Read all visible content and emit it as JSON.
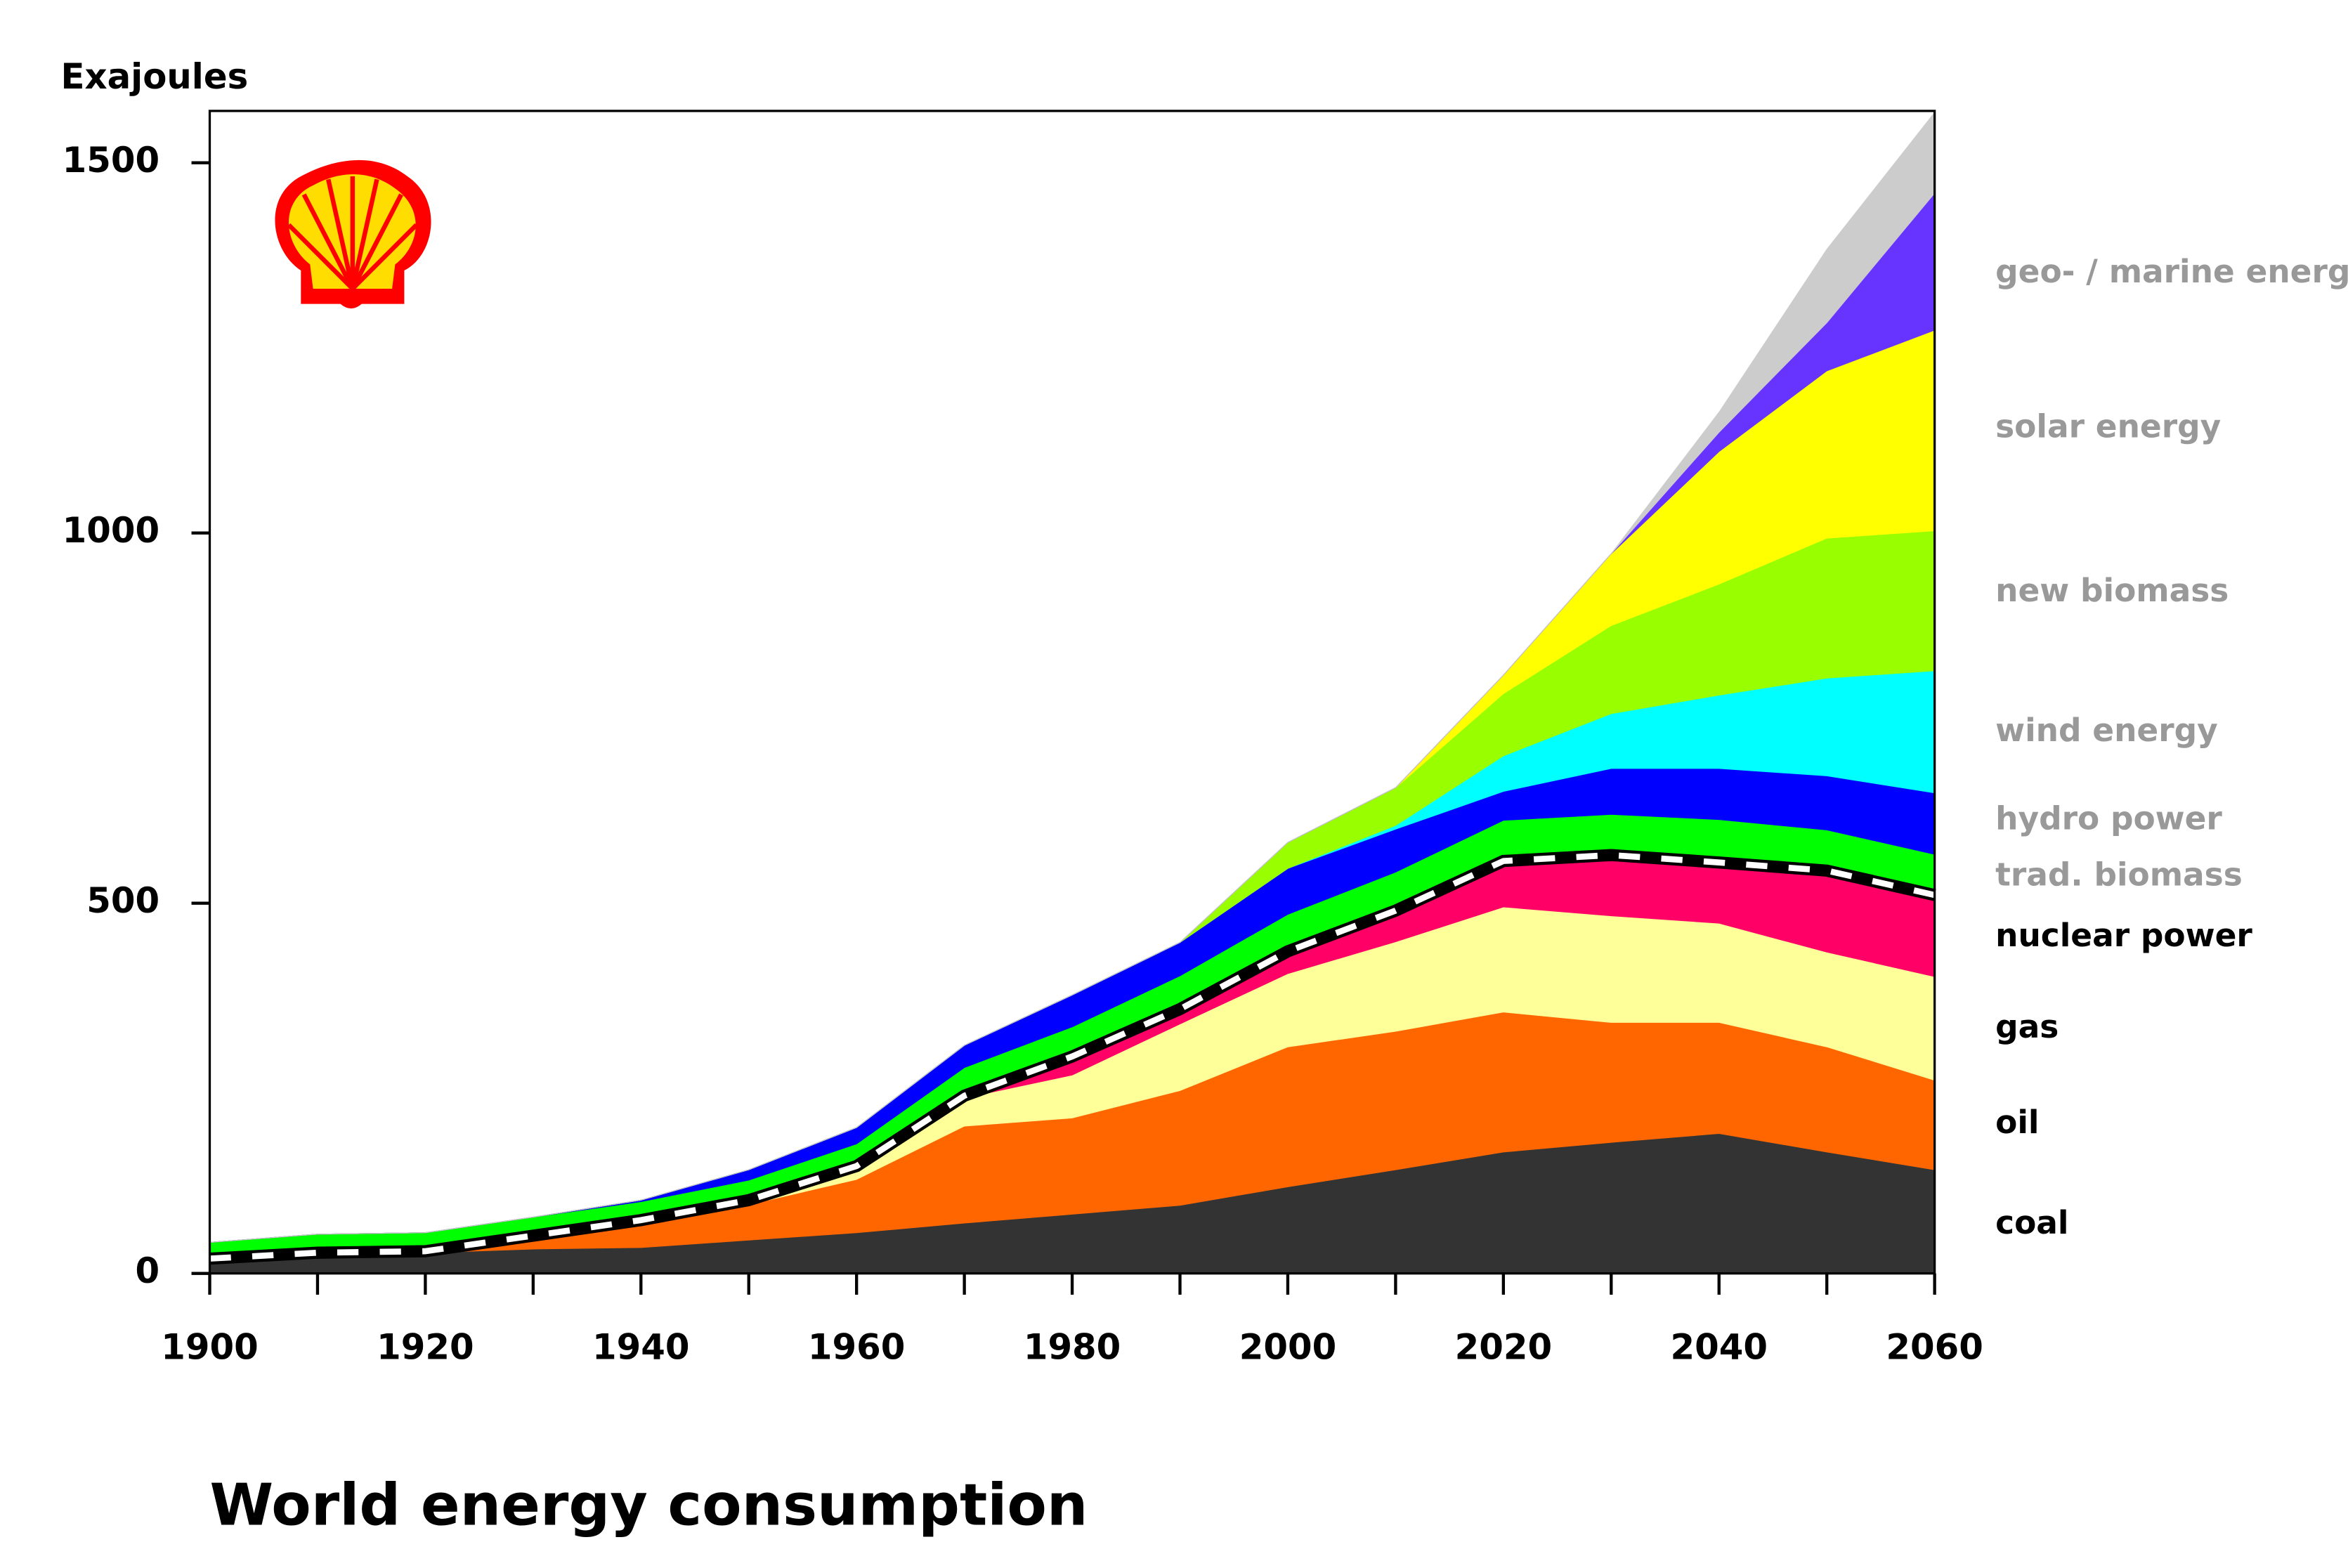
{
  "chart_data": {
    "type": "stacked_area",
    "title": "World energy consumption",
    "y_label": "Exajoules",
    "x": [
      1900,
      1910,
      1920,
      1930,
      1940,
      1950,
      1960,
      1970,
      1980,
      1990,
      2000,
      2010,
      2020,
      2030,
      2040,
      2050,
      2060
    ],
    "xlim": [
      1900,
      2060
    ],
    "xticks": [
      1900,
      1920,
      1940,
      1960,
      1980,
      2000,
      2020,
      2040,
      2060
    ],
    "xminor_ticks": [
      1910,
      1930,
      1950,
      1970,
      1990,
      2010,
      2030,
      2050
    ],
    "ylim": [
      0,
      1570
    ],
    "yticks": [
      0,
      500,
      1000,
      1500
    ],
    "series": [
      {
        "name": "coal",
        "color": "#333333",
        "label_color": "#000000",
        "values": [
          20,
          28,
          28,
          33,
          35,
          45,
          55,
          68,
          80,
          92,
          117,
          140,
          164,
          177,
          189,
          164,
          140
        ]
      },
      {
        "name": "oil",
        "color": "#ff6600",
        "label_color": "#000000",
        "values": [
          0,
          0,
          2,
          18,
          35,
          48,
          72,
          131,
          130,
          155,
          189,
          187,
          189,
          162,
          150,
          142,
          121
        ]
      },
      {
        "name": "gas",
        "color": "#ffff99",
        "label_color": "#000000",
        "values": [
          0,
          0,
          0,
          0,
          2,
          6,
          18,
          38,
          58,
          90,
          99,
          121,
          142,
          144,
          134,
          128,
          140
        ]
      },
      {
        "name": "nuclear power",
        "color": "#ff0066",
        "label_color": "#000000",
        "values": [
          0,
          0,
          0,
          0,
          0,
          0,
          0,
          3,
          25,
          20,
          30,
          42,
          62,
          82,
          82,
          110,
          110
        ]
      },
      {
        "name": "trad. biomass",
        "color": "#00ff00",
        "label_color": "#999999",
        "values": [
          22,
          25,
          25,
          25,
          25,
          27,
          30,
          38,
          40,
          45,
          50,
          52,
          55,
          55,
          58,
          55,
          55
        ]
      },
      {
        "name": "hydro power",
        "color": "#0000ff",
        "label_color": "#999999",
        "values": [
          0,
          0,
          0,
          0,
          2,
          14,
          22,
          30,
          43,
          45,
          62,
          58,
          39,
          62,
          69,
          73,
          83
        ]
      },
      {
        "name": "wind energy",
        "color": "#00ffff",
        "label_color": "#999999",
        "values": [
          0,
          0,
          0,
          0,
          0,
          0,
          0,
          0,
          0,
          0,
          0,
          5,
          48,
          74,
          99,
          132,
          165
        ]
      },
      {
        "name": "new biomass",
        "color": "#99ff00",
        "label_color": "#999999",
        "values": [
          0,
          0,
          0,
          0,
          0,
          0,
          0,
          0,
          0,
          0,
          35,
          51,
          84,
          119,
          150,
          189,
          189
        ]
      },
      {
        "name": "solar energy",
        "color": "#ffff00",
        "label_color": "#999999",
        "values": [
          0,
          0,
          0,
          0,
          0,
          0,
          0,
          0,
          0,
          0,
          0,
          0,
          25,
          97,
          179,
          226,
          271
        ]
      },
      {
        "name": "geo- / marine energy",
        "color": "#6633ff",
        "label_color": "#999999",
        "values": [
          0,
          0,
          0,
          0,
          0,
          0,
          0,
          0,
          0,
          0,
          0,
          0,
          0,
          0,
          26,
          65,
          185
        ]
      },
      {
        "color": "#cccccc",
        "values": [
          0,
          0,
          0,
          0,
          0,
          0,
          0,
          0,
          0,
          0,
          0,
          0,
          0,
          0,
          27,
          99,
          109
        ]
      }
    ]
  }
}
